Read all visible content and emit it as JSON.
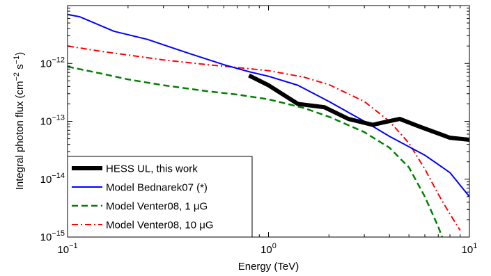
{
  "chart_data": {
    "type": "line",
    "title": "",
    "xlabel": "Energy (TeV)",
    "ylabel": "Integral photon flux (cm⁻² s⁻¹)",
    "x_scale": "log",
    "y_scale": "log",
    "xlim": [
      0.1,
      10
    ],
    "ylim": [
      1e-15,
      1e-11
    ],
    "x_ticks": [
      {
        "value": 0.1,
        "base": "10",
        "exp": "−1"
      },
      {
        "value": 1,
        "base": "10",
        "exp": "0"
      },
      {
        "value": 10,
        "base": "10",
        "exp": "1"
      }
    ],
    "y_ticks": [
      {
        "value": 1e-15,
        "base": "10",
        "exp": "−15"
      },
      {
        "value": 1e-14,
        "base": "10",
        "exp": "−14"
      },
      {
        "value": 1e-13,
        "base": "10",
        "exp": "−13"
      },
      {
        "value": 1e-12,
        "base": "10",
        "exp": "−12"
      }
    ],
    "grid": false,
    "legend_position": "bottom-left",
    "series": [
      {
        "name": "HESS UL, this work",
        "color": "#000000",
        "style": "solid-thick",
        "points": [
          [
            0.8,
            6.2e-13
          ],
          [
            1.0,
            4.2e-13
          ],
          [
            1.4,
            2e-13
          ],
          [
            1.9,
            1.75e-13
          ],
          [
            2.5,
            1.1e-13
          ],
          [
            3.3,
            8.7e-14
          ],
          [
            3.7,
            9.5e-14
          ],
          [
            4.5,
            1.1e-13
          ],
          [
            5.7,
            8e-14
          ],
          [
            8.0,
            5.2e-14
          ],
          [
            10.0,
            4.8e-14
          ]
        ]
      },
      {
        "name": "Model Bednarek07 (*)",
        "color": "#0000ff",
        "style": "solid",
        "points": [
          [
            0.1,
            7e-12
          ],
          [
            0.115,
            6.4e-12
          ],
          [
            0.17,
            3.6e-12
          ],
          [
            0.25,
            2.6e-12
          ],
          [
            0.4,
            1.5e-12
          ],
          [
            0.6,
            9.5e-13
          ],
          [
            0.8,
            7.2e-13
          ],
          [
            1.0,
            6e-13
          ],
          [
            1.4,
            4.2e-13
          ],
          [
            2.0,
            2.2e-13
          ],
          [
            3.0,
            1e-13
          ],
          [
            4.0,
            5.5e-14
          ],
          [
            6.0,
            2.6e-14
          ],
          [
            8.0,
            1.3e-14
          ],
          [
            10.0,
            5e-15
          ]
        ]
      },
      {
        "name": "Model Venter08, 1 μG",
        "color": "#008000",
        "style": "dashed",
        "points": [
          [
            0.1,
            8.8e-13
          ],
          [
            0.15,
            6.6e-13
          ],
          [
            0.2,
            5.3e-13
          ],
          [
            0.3,
            4.2e-13
          ],
          [
            0.5,
            3.3e-13
          ],
          [
            0.7,
            2.9e-13
          ],
          [
            1.0,
            2.4e-13
          ],
          [
            1.5,
            1.7e-13
          ],
          [
            2.0,
            1.2e-13
          ],
          [
            3.0,
            6.5e-14
          ],
          [
            4.0,
            3.5e-14
          ],
          [
            5.0,
            1.6e-14
          ],
          [
            6.0,
            5e-15
          ],
          [
            7.0,
            1.5e-15
          ],
          [
            7.5,
            8e-16
          ]
        ]
      },
      {
        "name": "Model Venter08, 10 μG",
        "color": "#ff0000",
        "style": "dash-dot",
        "points": [
          [
            0.1,
            2e-12
          ],
          [
            0.15,
            1.6e-12
          ],
          [
            0.2,
            1.4e-12
          ],
          [
            0.3,
            1.15e-12
          ],
          [
            0.5,
            9.5e-13
          ],
          [
            0.7,
            8.5e-13
          ],
          [
            1.0,
            7.5e-13
          ],
          [
            1.5,
            5.8e-13
          ],
          [
            2.0,
            4.3e-13
          ],
          [
            3.0,
            2.2e-13
          ],
          [
            4.0,
            1e-13
          ],
          [
            5.0,
            4.2e-14
          ],
          [
            6.0,
            1.5e-14
          ],
          [
            7.0,
            5.5e-15
          ],
          [
            8.0,
            2.5e-15
          ],
          [
            9.0,
            1.3e-15
          ]
        ]
      }
    ]
  }
}
